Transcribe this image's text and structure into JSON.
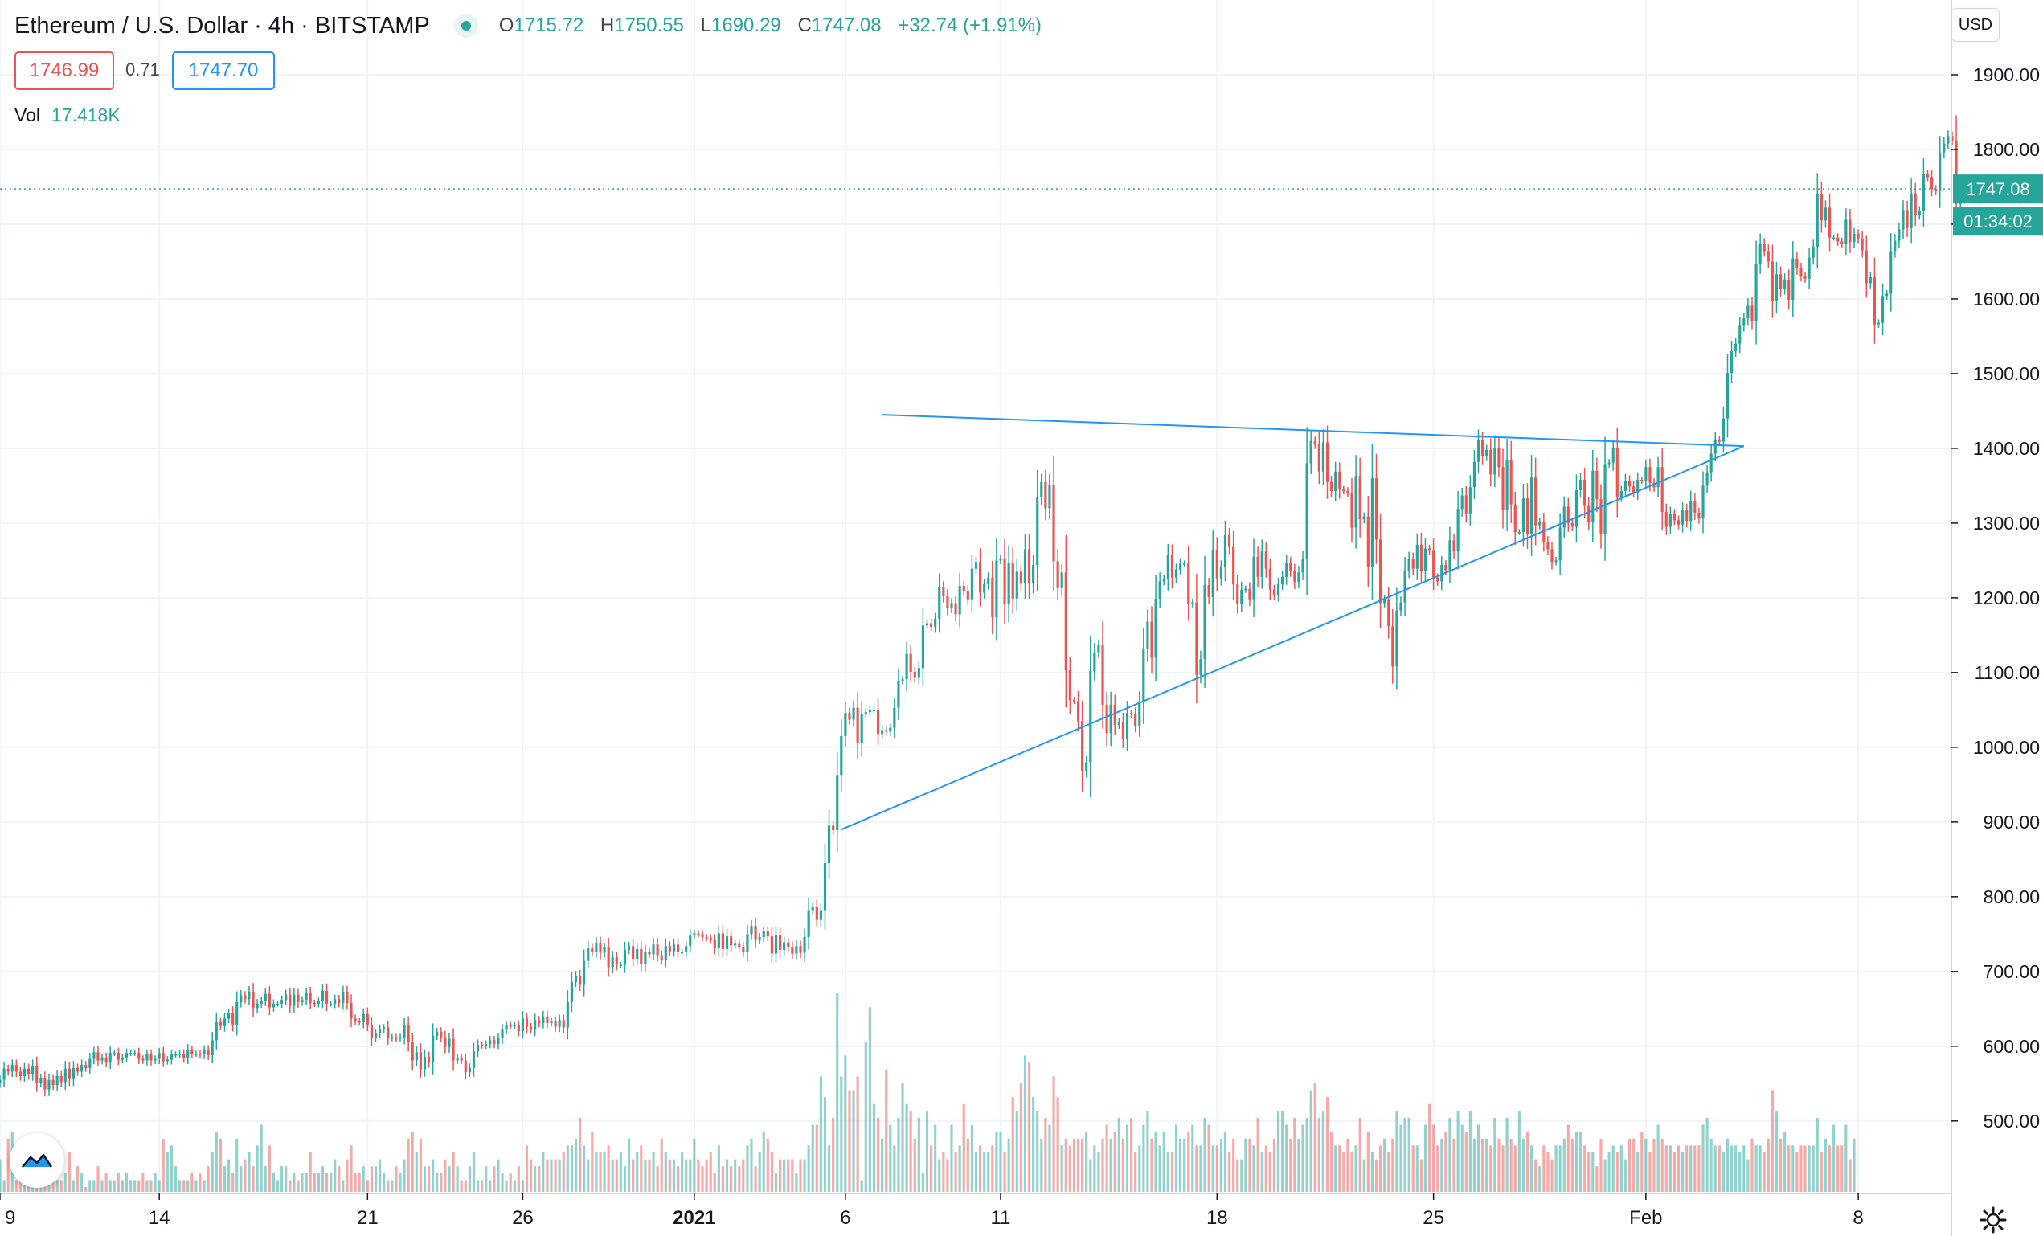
{
  "header": {
    "symbol_title": "Ethereum / U.S. Dollar · 4h · BITSTAMP",
    "ohlc": {
      "o_label": "O",
      "o": "1715.72",
      "h_label": "H",
      "h": "1750.55",
      "l_label": "L",
      "l": "1690.29",
      "c_label": "C",
      "c": "1747.08",
      "change": "+32.74 (+1.91%)"
    },
    "sell_price": "1746.99",
    "spread": "0.71",
    "buy_price": "1747.70",
    "volume_label": "Vol",
    "volume_value": "17.418K",
    "currency_button": "USD"
  },
  "colors": {
    "up": "#26a69a",
    "down": "#ef5350",
    "trendline": "#2196f3",
    "grid": "#f0f3fa"
  },
  "chart_data": {
    "type": "candlestick",
    "title": "Ethereum / U.S. Dollar · 4h · BITSTAMP",
    "ylim": [
      403,
      2000
    ],
    "y_ticks": [
      500,
      600,
      700,
      800,
      900,
      1000,
      1100,
      1200,
      1300,
      1400,
      1500,
      1600,
      1700,
      1800,
      1900
    ],
    "y_tick_labels": [
      "500.00",
      "600.00",
      "700.00",
      "800.00",
      "900.00",
      "1000.00",
      "1100.00",
      "1200.00",
      "1300.00",
      "1400.00",
      "1500.00",
      "1600.00",
      "1700.00",
      "1800.00",
      "1900.00"
    ],
    "x_range": [
      0,
      466
    ],
    "x_ticks": [
      {
        "x": 0,
        "label": "9"
      },
      {
        "x": 39,
        "label": "14"
      },
      {
        "x": 90,
        "label": "21"
      },
      {
        "x": 128,
        "label": "26"
      },
      {
        "x": 170,
        "label": "2021"
      },
      {
        "x": 207,
        "label": "6"
      },
      {
        "x": 245,
        "label": "11"
      },
      {
        "x": 298,
        "label": "18"
      },
      {
        "x": 351,
        "label": "25"
      },
      {
        "x": 403,
        "label": "Feb"
      },
      {
        "x": 455,
        "label": "8"
      }
    ],
    "closes": [
      555,
      570,
      566,
      575,
      566,
      560,
      570,
      562,
      574,
      551,
      557,
      542,
      555,
      548,
      560,
      552,
      570,
      556,
      571,
      566,
      575,
      571,
      583,
      592,
      581,
      585,
      578,
      591,
      591,
      582,
      585,
      591,
      591,
      591,
      583,
      581,
      589,
      581,
      583,
      591,
      580,
      582,
      589,
      589,
      590,
      584,
      595,
      590,
      590,
      589,
      595,
      588,
      608,
      632,
      627,
      637,
      644,
      629,
      659,
      668,
      663,
      673,
      651,
      657,
      661,
      670,
      652,
      657,
      657,
      662,
      669,
      654,
      669,
      659,
      662,
      671,
      658,
      657,
      660,
      674,
      657,
      657,
      663,
      658,
      672,
      658,
      637,
      633,
      632,
      643,
      629,
      611,
      617,
      623,
      625,
      611,
      612,
      610,
      612,
      628,
      605,
      581,
      592,
      569,
      586,
      578,
      614,
      619,
      612,
      599,
      610,
      581,
      584,
      581,
      565,
      571,
      593,
      602,
      601,
      603,
      608,
      603,
      611,
      622,
      628,
      627,
      628,
      620,
      637,
      626,
      622,
      635,
      631,
      640,
      631,
      633,
      626,
      635,
      625,
      659,
      686,
      694,
      682,
      714,
      731,
      726,
      738,
      725,
      732,
      706,
      719,
      709,
      709,
      729,
      734,
      717,
      730,
      710,
      726,
      723,
      736,
      722,
      716,
      734,
      727,
      736,
      726,
      726,
      734,
      748,
      751,
      750,
      746,
      745,
      742,
      731,
      751,
      730,
      747,
      735,
      737,
      733,
      726,
      750,
      761,
      742,
      746,
      754,
      747,
      724,
      748,
      729,
      739,
      733,
      724,
      734,
      725,
      746,
      782,
      786,
      769,
      782,
      845,
      895,
      889,
      963,
      1015,
      1046,
      1037,
      1053,
      1005,
      1044,
      1047,
      1050,
      1050,
      1018,
      1023,
      1021,
      1026,
      1053,
      1089,
      1091,
      1125,
      1101,
      1093,
      1106,
      1163,
      1166,
      1161,
      1172,
      1214,
      1202,
      1186,
      1193,
      1178,
      1216,
      1209,
      1198,
      1239,
      1248,
      1207,
      1218,
      1227,
      1174,
      1250,
      1253,
      1191,
      1247,
      1199,
      1235,
      1219,
      1265,
      1219,
      1244,
      1335,
      1355,
      1320,
      1351,
      1249,
      1213,
      1234,
      1103,
      1063,
      1062,
      1035,
      968,
      980,
      1102,
      1127,
      1137,
      1057,
      1019,
      1057,
      1030,
      1034,
      1011,
      1046,
      1044,
      1029,
      1060,
      1131,
      1168,
      1120,
      1199,
      1222,
      1225,
      1257,
      1227,
      1238,
      1246,
      1246,
      1192,
      1194,
      1097,
      1118,
      1217,
      1201,
      1264,
      1226,
      1241,
      1284,
      1268,
      1218,
      1192,
      1211,
      1212,
      1198,
      1255,
      1228,
      1262,
      1239,
      1211,
      1204,
      1218,
      1228,
      1247,
      1236,
      1221,
      1234,
      1252,
      1380,
      1410,
      1405,
      1369,
      1408,
      1355,
      1343,
      1369,
      1345,
      1343,
      1340,
      1294,
      1363,
      1305,
      1309,
      1242,
      1360,
      1278,
      1193,
      1198,
      1162,
      1108,
      1183,
      1194,
      1236,
      1252,
      1239,
      1271,
      1236,
      1266,
      1263,
      1227,
      1222,
      1244,
      1237,
      1277,
      1262,
      1319,
      1337,
      1313,
      1348,
      1382,
      1411,
      1390,
      1398,
      1365,
      1401,
      1375,
      1317,
      1385,
      1325,
      1288,
      1288,
      1333,
      1286,
      1361,
      1297,
      1301,
      1275,
      1265,
      1248,
      1250,
      1294,
      1322,
      1300,
      1295,
      1344,
      1358,
      1323,
      1302,
      1370,
      1332,
      1286,
      1379,
      1381,
      1401,
      1335,
      1343,
      1357,
      1349,
      1341,
      1358,
      1357,
      1375,
      1354,
      1348,
      1375,
      1315,
      1295,
      1312,
      1304,
      1298,
      1317,
      1303,
      1330,
      1314,
      1306,
      1350,
      1368,
      1393,
      1412,
      1409,
      1440,
      1501,
      1530,
      1540,
      1564,
      1574,
      1591,
      1570,
      1647,
      1674,
      1664,
      1650,
      1597,
      1633,
      1614,
      1626,
      1599,
      1654,
      1641,
      1631,
      1627,
      1655,
      1670,
      1740,
      1705,
      1722,
      1682,
      1682,
      1677,
      1674,
      1706,
      1676,
      1687,
      1681,
      1665,
      1621,
      1629,
      1566,
      1568,
      1604,
      1607,
      1664,
      1678,
      1693,
      1719,
      1695,
      1741,
      1712,
      1718,
      1767,
      1763,
      1747,
      1744,
      1796,
      1808,
      1818,
      1812,
      1727,
      1747
    ],
    "volumes": [
      450,
      420,
      480,
      490,
      420,
      430,
      470,
      480,
      480,
      440,
      410,
      430,
      420,
      450,
      420,
      420,
      430,
      460,
      420,
      440,
      430,
      410,
      420,
      420,
      440,
      420,
      430,
      420,
      420,
      430,
      420,
      430,
      420,
      420,
      420,
      430,
      420,
      420,
      430,
      420,
      480,
      460,
      470,
      440,
      420,
      420,
      420,
      430,
      420,
      430,
      420,
      440,
      460,
      490,
      480,
      440,
      450,
      430,
      480,
      440,
      450,
      460,
      440,
      470,
      500,
      440,
      470,
      430,
      420,
      440,
      440,
      420,
      430,
      420,
      430,
      430,
      460,
      430,
      430,
      440,
      430,
      430,
      450,
      440,
      420,
      450,
      470,
      430,
      430,
      440,
      420,
      440,
      440,
      450,
      430,
      420,
      420,
      440,
      430,
      450,
      480,
      490,
      460,
      480,
      440,
      440,
      450,
      430,
      430,
      450,
      440,
      460,
      440,
      420,
      420,
      440,
      460,
      420,
      420,
      440,
      420,
      440,
      450,
      430,
      420,
      430,
      420,
      440,
      420,
      470,
      450,
      440,
      440,
      460,
      450,
      450,
      450,
      450,
      460,
      470,
      470,
      480,
      510,
      470,
      450,
      490,
      460,
      460,
      460,
      470,
      450,
      450,
      460,
      440,
      480,
      450,
      460,
      470,
      450,
      450,
      460,
      440,
      480,
      460,
      450,
      450,
      440,
      460,
      450,
      450,
      480,
      450,
      440,
      450,
      460,
      430,
      470,
      440,
      450,
      440,
      450,
      440,
      450,
      470,
      480,
      440,
      460,
      490,
      480,
      460,
      430,
      450,
      450,
      450,
      450,
      430,
      450,
      450,
      470,
      500,
      500,
      570,
      540,
      470,
      510,
      690,
      570,
      600,
      550,
      550,
      570,
      420,
      620,
      670,
      530,
      510,
      480,
      580,
      500,
      470,
      510,
      560,
      530,
      520,
      480,
      510,
      430,
      520,
      470,
      500,
      450,
      460,
      450,
      500,
      460,
      470,
      530,
      480,
      500,
      460,
      470,
      460,
      460,
      470,
      490,
      490,
      460,
      480,
      540,
      520,
      560,
      600,
      590,
      540,
      520,
      480,
      510,
      500,
      570,
      540,
      470,
      480,
      470,
      480,
      480,
      480,
      490,
      450,
      470,
      460,
      480,
      500,
      480,
      490,
      510,
      480,
      500,
      510,
      460,
      470,
      500,
      520,
      480,
      490,
      470,
      490,
      460,
      460,
      500,
      480,
      480,
      490,
      500,
      470,
      470,
      510,
      500,
      470,
      470,
      480,
      490,
      460,
      480,
      450,
      450,
      480,
      480,
      470,
      510,
      460,
      470,
      460,
      480,
      520,
      520,
      500,
      480,
      510,
      480,
      500,
      510,
      550,
      560,
      510,
      520,
      540,
      490,
      470,
      470,
      460,
      480,
      460,
      470,
      510,
      450,
      490,
      460,
      450,
      470,
      480,
      460,
      480,
      520,
      500,
      510,
      510,
      470,
      470,
      450,
      500,
      530,
      500,
      470,
      480,
      490,
      510,
      480,
      520,
      500,
      490,
      520,
      480,
      500,
      480,
      480,
      470,
      510,
      480,
      470,
      510,
      480,
      470,
      520,
      480,
      490,
      470,
      450,
      440,
      470,
      460,
      450,
      470,
      470,
      480,
      500,
      480,
      490,
      490,
      470,
      460,
      460,
      440,
      480,
      450,
      460,
      470,
      460,
      470,
      450,
      480,
      480,
      460,
      490,
      480,
      460,
      480,
      500,
      480,
      470,
      470,
      460,
      470,
      460,
      470,
      470,
      470,
      470,
      500,
      510,
      480,
      470,
      470,
      460,
      480,
      470,
      470,
      460,
      470,
      450,
      480,
      470,
      470,
      460,
      480,
      550,
      520,
      480,
      490,
      470,
      470,
      460,
      470,
      470,
      470,
      470,
      510,
      460,
      480,
      470,
      500,
      470,
      470,
      500,
      450,
      480
    ]
  },
  "indicators": {
    "last_price": "1747.08",
    "countdown": "01:34:02"
  },
  "drawings": {
    "trendline_upper": {
      "from": {
        "x": 216,
        "y": 1445
      },
      "to": {
        "x": 427,
        "y": 1403
      }
    },
    "trendline_lower": {
      "from": {
        "x": 206,
        "y": 890
      },
      "to": {
        "x": 427,
        "y": 1403
      }
    }
  }
}
